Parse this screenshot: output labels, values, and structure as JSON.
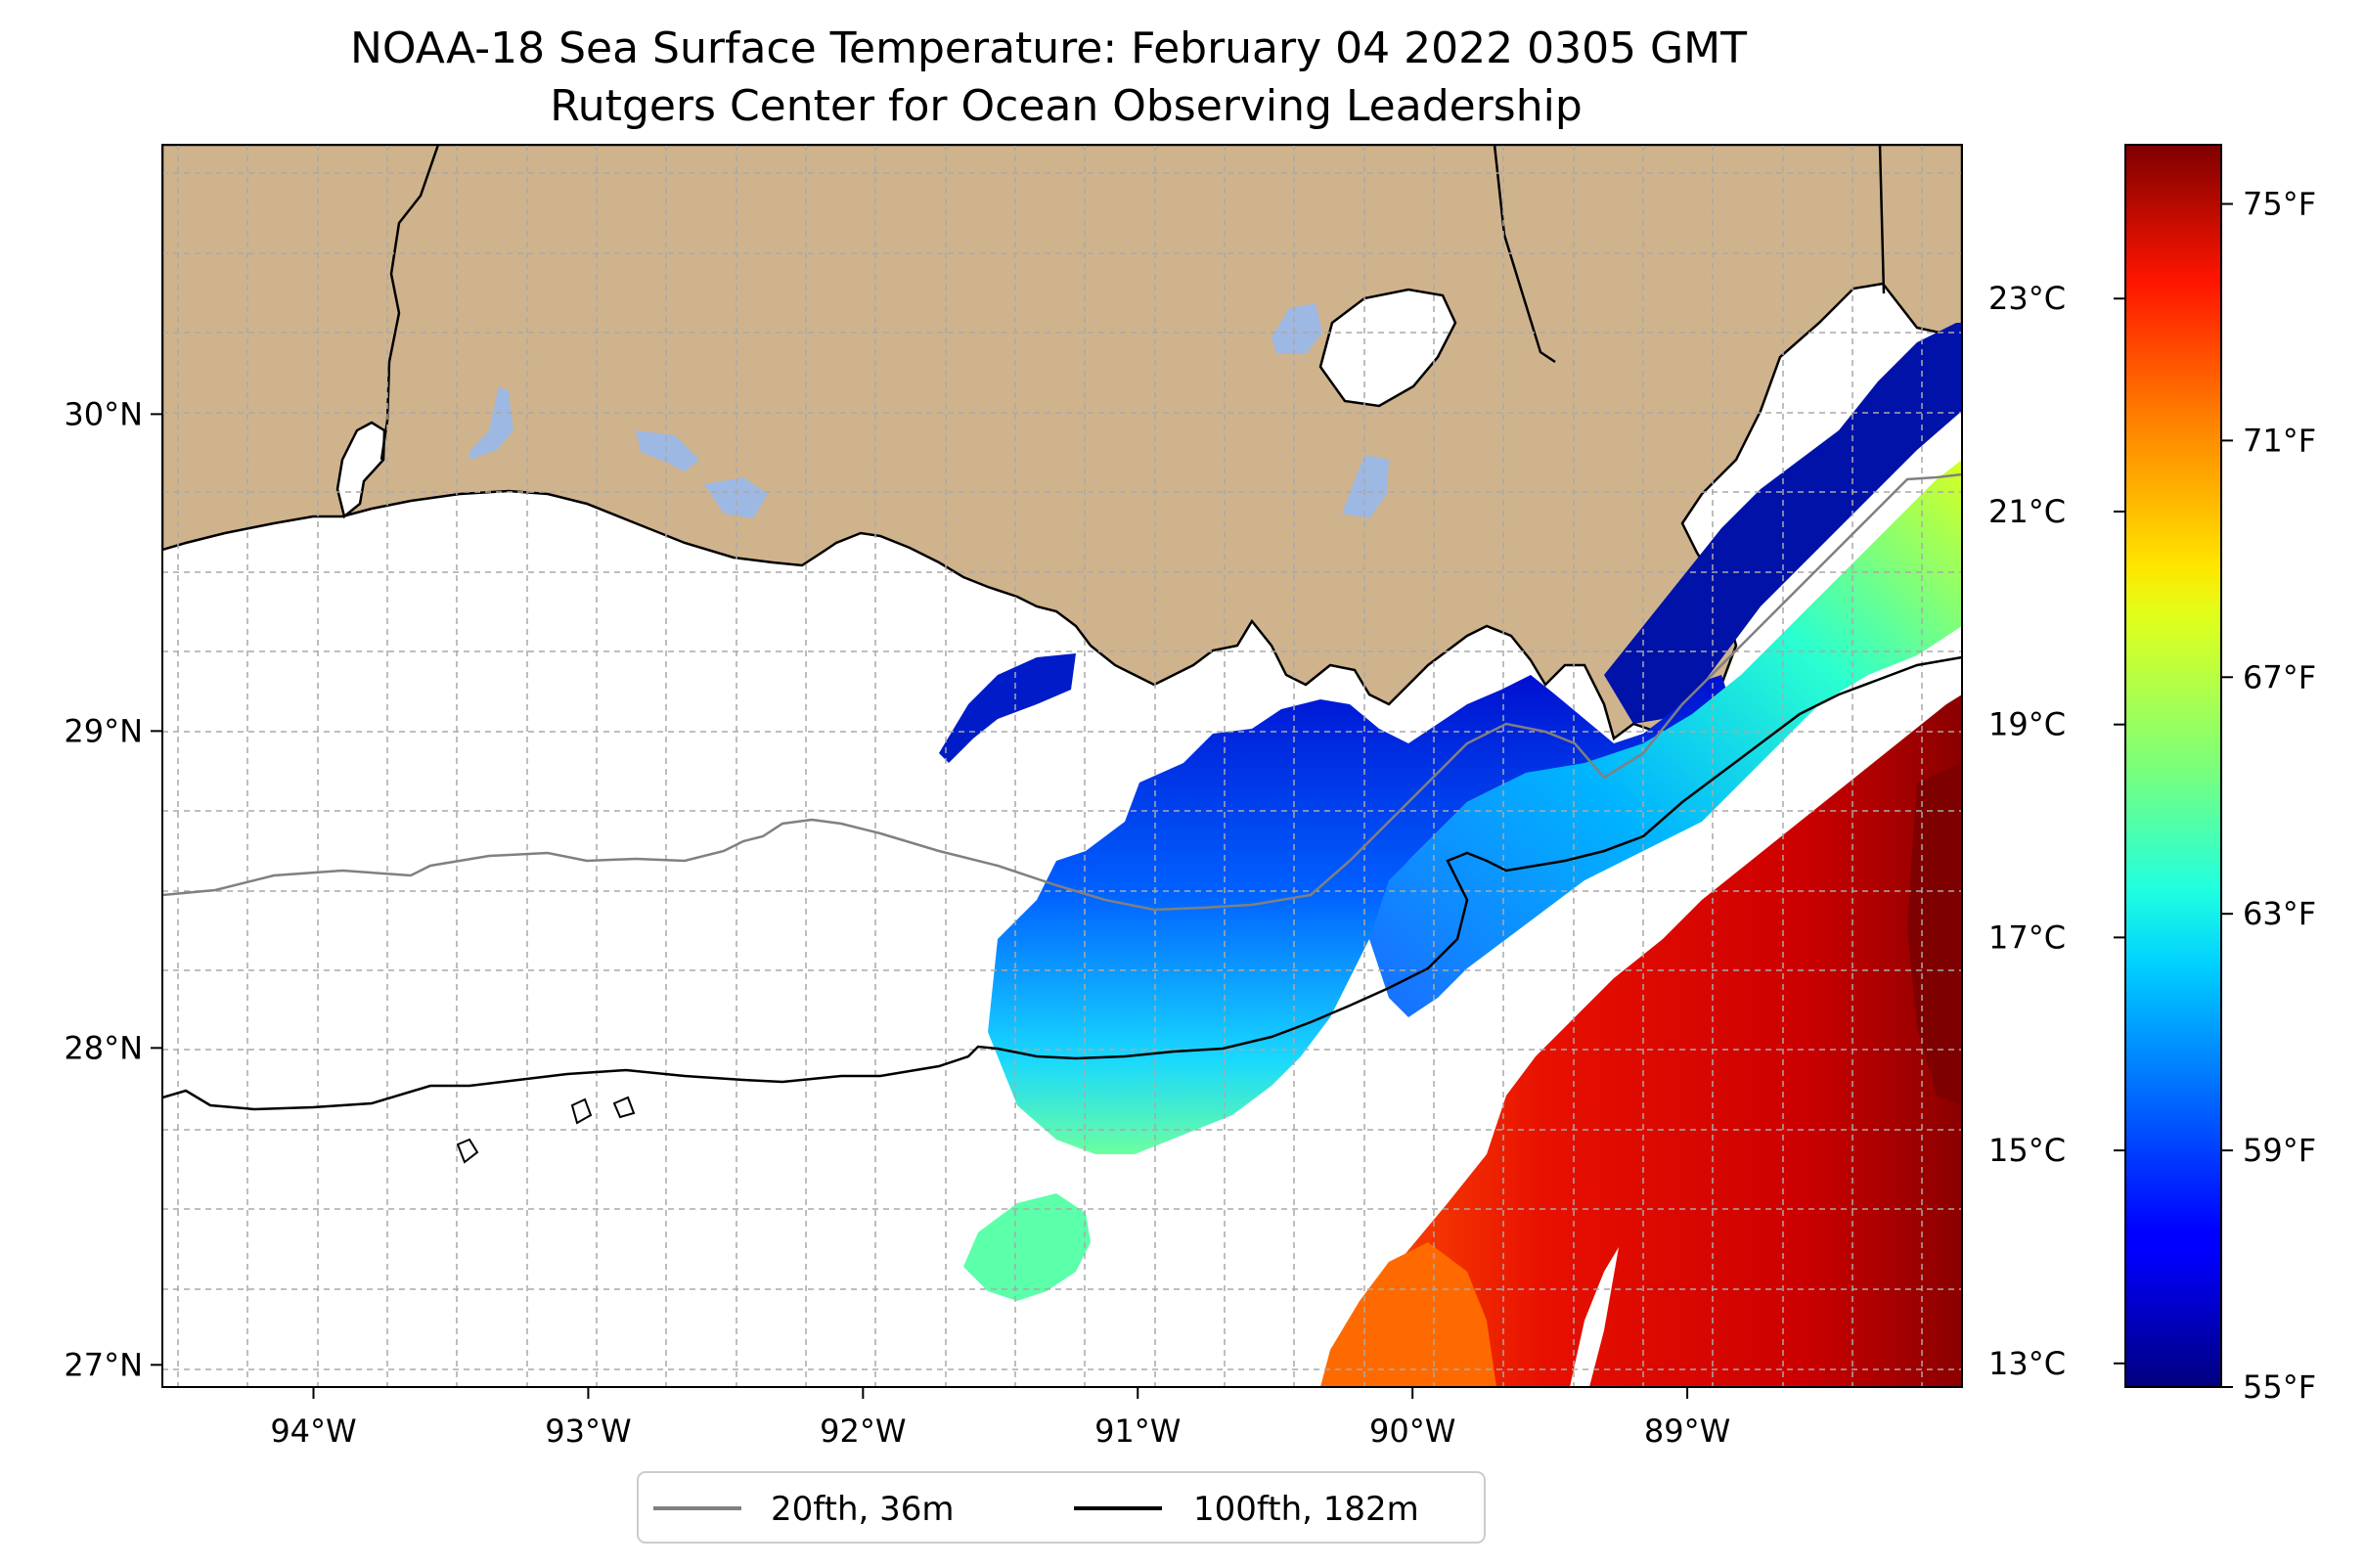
{
  "title": "NOAA-18 Sea Surface Temperature: February 04 2022 0305 GMT",
  "subtitle": "Rutgers Center for Ocean Observing Leadership",
  "map": {
    "lon_range": [
      -94.55,
      -88.0
    ],
    "lat_range": [
      26.93,
      30.85
    ],
    "lon_ticks": [
      {
        "value": -94,
        "label": "94°W"
      },
      {
        "value": -93,
        "label": "93°W"
      },
      {
        "value": -92,
        "label": "92°W"
      },
      {
        "value": -91,
        "label": "91°W"
      },
      {
        "value": -90,
        "label": "90°W"
      },
      {
        "value": -89,
        "label": "89°W"
      }
    ],
    "lat_ticks": [
      {
        "value": 27,
        "label": "27°N"
      },
      {
        "value": 28,
        "label": "28°N"
      },
      {
        "value": 29,
        "label": "29°N"
      },
      {
        "value": 30,
        "label": "30°N"
      }
    ],
    "gridlines": true,
    "colors": {
      "land": "#cfb38c",
      "lakes": "#9db8e2",
      "ocean_nodata": "#ffffff",
      "coastline": "#000000",
      "grid": "#b0b0b0"
    }
  },
  "colorbar": {
    "colormap": "jet",
    "range_f": [
      55,
      76
    ],
    "ticks_f": [
      {
        "value": 55,
        "label": "55°F"
      },
      {
        "value": 59,
        "label": "59°F"
      },
      {
        "value": 63,
        "label": "63°F"
      },
      {
        "value": 67,
        "label": "67°F"
      },
      {
        "value": 71,
        "label": "71°F"
      },
      {
        "value": 75,
        "label": "75°F"
      }
    ],
    "ticks_c": [
      {
        "value": 13,
        "label": "13°C"
      },
      {
        "value": 15,
        "label": "15°C"
      },
      {
        "value": 17,
        "label": "17°C"
      },
      {
        "value": 19,
        "label": "19°C"
      },
      {
        "value": 21,
        "label": "21°C"
      },
      {
        "value": 23,
        "label": "23°C"
      }
    ]
  },
  "legend": {
    "placement": "bottom-center",
    "items": [
      {
        "label": "20fth, 36m",
        "color": "#808080"
      },
      {
        "label": "100fth, 182m",
        "color": "#000000"
      }
    ]
  }
}
